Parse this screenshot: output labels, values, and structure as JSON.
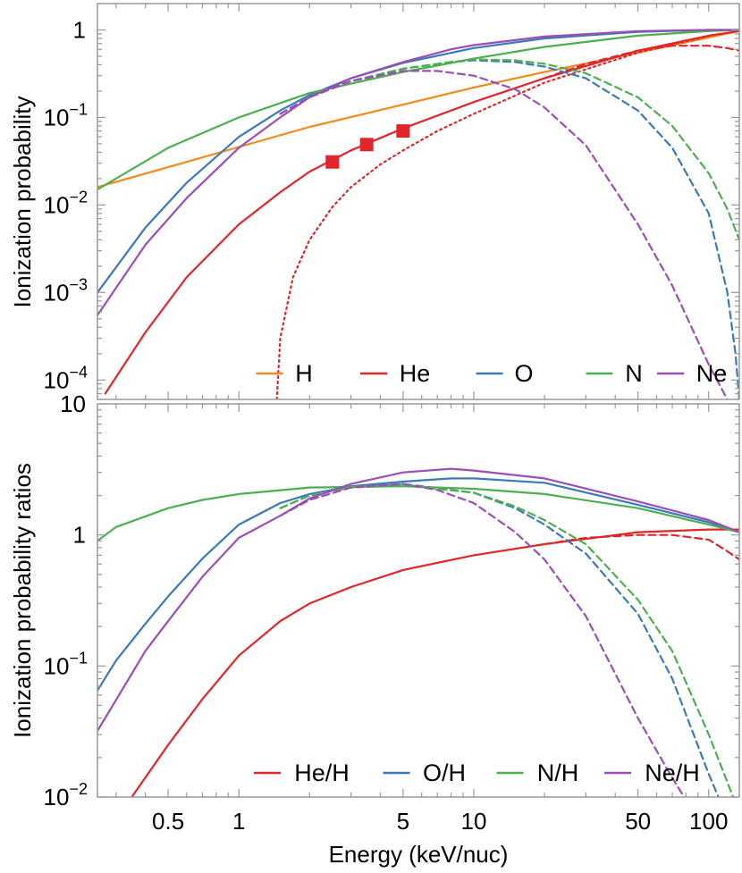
{
  "chart_data": [
    {
      "type": "line",
      "panel": "top",
      "title": "",
      "xlabel": "",
      "ylabel": "Ionization probability",
      "xscale": "log",
      "yscale": "log",
      "xlim": [
        0.25,
        135
      ],
      "ylim": [
        6e-05,
        2
      ],
      "grid": false,
      "legend_placement": "bottom-right, single row",
      "y_tick_labels": [
        {
          "value": 1,
          "label": "1"
        },
        {
          "value": 0.1,
          "label": "10",
          "exp": "−1"
        },
        {
          "value": 0.01,
          "label": "10",
          "exp": "−2"
        },
        {
          "value": 0.001,
          "label": "10",
          "exp": "−3"
        },
        {
          "value": 0.0001,
          "label": "10",
          "exp": "−4"
        }
      ],
      "legend": [
        {
          "label": "H",
          "color": "#f28a1e"
        },
        {
          "label": "He",
          "color": "#e0262b"
        },
        {
          "label": "O",
          "color": "#3a7ab8"
        },
        {
          "label": "N",
          "color": "#4caf50"
        },
        {
          "label": "Ne",
          "color": "#9b4fb5"
        }
      ],
      "series": [
        {
          "name": "H",
          "style": "solid",
          "color": "#f28a1e",
          "x": [
            0.25,
            0.5,
            1,
            2,
            5,
            10,
            20,
            50,
            100,
            135
          ],
          "y": [
            0.016,
            0.027,
            0.046,
            0.078,
            0.14,
            0.22,
            0.33,
            0.55,
            0.82,
            0.97
          ]
        },
        {
          "name": "He",
          "style": "solid",
          "color": "#e0262b",
          "x": [
            0.27,
            0.4,
            0.6,
            1,
            1.5,
            2,
            3,
            5,
            10,
            20,
            50,
            100,
            135
          ],
          "y": [
            7e-05,
            0.00035,
            0.0015,
            0.006,
            0.014,
            0.024,
            0.042,
            0.075,
            0.15,
            0.28,
            0.58,
            0.86,
            0.97
          ]
        },
        {
          "name": "He",
          "style": "dashed",
          "color": "#e0262b",
          "x": [
            20,
            30,
            50,
            70,
            100,
            120,
            135
          ],
          "y": [
            0.28,
            0.41,
            0.58,
            0.66,
            0.66,
            0.62,
            0.58
          ]
        },
        {
          "name": "He",
          "style": "dotted",
          "color": "#e0262b",
          "x": [
            1.45,
            1.5,
            1.7,
            2,
            2.5,
            3,
            4,
            5,
            7,
            10,
            20,
            50,
            100
          ],
          "y": [
            6e-05,
            0.0003,
            0.0015,
            0.004,
            0.0095,
            0.016,
            0.029,
            0.042,
            0.07,
            0.11,
            0.25,
            0.55,
            0.85
          ]
        },
        {
          "name": "He",
          "style": "markers",
          "color": "#e0262b",
          "x": [
            2.5,
            3.5,
            5
          ],
          "y": [
            0.031,
            0.049,
            0.07
          ]
        },
        {
          "name": "O",
          "style": "solid",
          "color": "#3a7ab8",
          "x": [
            0.25,
            0.4,
            0.6,
            1,
            1.5,
            2,
            3,
            5,
            10,
            20,
            50,
            100,
            135
          ],
          "y": [
            0.001,
            0.0055,
            0.018,
            0.06,
            0.12,
            0.18,
            0.28,
            0.42,
            0.62,
            0.8,
            0.95,
            1.0,
            1.0
          ]
        },
        {
          "name": "O",
          "style": "dashed",
          "color": "#3a7ab8",
          "x": [
            1.5,
            2,
            3,
            5,
            8,
            10,
            15,
            20,
            30,
            50,
            70,
            100,
            120,
            130,
            135
          ],
          "y": [
            0.11,
            0.17,
            0.26,
            0.36,
            0.43,
            0.45,
            0.43,
            0.38,
            0.28,
            0.12,
            0.045,
            0.008,
            0.001,
            0.0002,
            6e-05
          ]
        },
        {
          "name": "N",
          "style": "solid",
          "color": "#4caf50",
          "x": [
            0.25,
            0.5,
            1,
            2,
            5,
            10,
            20,
            50,
            100,
            135
          ],
          "y": [
            0.015,
            0.045,
            0.1,
            0.19,
            0.33,
            0.47,
            0.64,
            0.86,
            0.97,
            1.0
          ]
        },
        {
          "name": "N",
          "style": "dashed",
          "color": "#4caf50",
          "x": [
            1.5,
            2,
            3,
            5,
            8,
            10,
            15,
            20,
            30,
            50,
            70,
            100,
            120,
            135
          ],
          "y": [
            0.11,
            0.17,
            0.26,
            0.36,
            0.43,
            0.46,
            0.45,
            0.41,
            0.32,
            0.17,
            0.08,
            0.023,
            0.009,
            0.004
          ]
        },
        {
          "name": "Ne",
          "style": "solid",
          "color": "#9b4fb5",
          "x": [
            0.25,
            0.4,
            0.6,
            1,
            1.5,
            2,
            3,
            5,
            8,
            10,
            20,
            50,
            100,
            135
          ],
          "y": [
            0.00055,
            0.0035,
            0.012,
            0.045,
            0.1,
            0.17,
            0.28,
            0.43,
            0.6,
            0.67,
            0.84,
            0.97,
            1.0,
            1.0
          ]
        },
        {
          "name": "Ne",
          "style": "dashed",
          "color": "#9b4fb5",
          "x": [
            1.5,
            2,
            3,
            5,
            7,
            10,
            15,
            20,
            30,
            50,
            70,
            100,
            120
          ],
          "y": [
            0.11,
            0.17,
            0.26,
            0.34,
            0.34,
            0.3,
            0.21,
            0.13,
            0.048,
            0.006,
            0.0012,
            0.00015,
            6e-05
          ]
        }
      ]
    },
    {
      "type": "line",
      "panel": "bottom",
      "title": "",
      "xlabel": "Energy (keV/nuc)",
      "ylabel": "Ionization probability ratios",
      "xscale": "log",
      "yscale": "log",
      "xlim": [
        0.25,
        135
      ],
      "ylim": [
        0.01,
        10
      ],
      "grid": false,
      "legend_placement": "bottom-right, single row",
      "x_tick_labels": [
        {
          "value": 0.5,
          "label": "0.5"
        },
        {
          "value": 1,
          "label": "1"
        },
        {
          "value": 5,
          "label": "5"
        },
        {
          "value": 10,
          "label": "10"
        },
        {
          "value": 50,
          "label": "50"
        },
        {
          "value": 100,
          "label": "100"
        }
      ],
      "y_tick_labels": [
        {
          "value": 10,
          "label": "10"
        },
        {
          "value": 1,
          "label": "1"
        },
        {
          "value": 0.1,
          "label": "10",
          "exp": "−1"
        },
        {
          "value": 0.01,
          "label": "10",
          "exp": "−2"
        }
      ],
      "legend": [
        {
          "label": "He/H",
          "color": "#e0262b"
        },
        {
          "label": "O/H",
          "color": "#3a7ab8"
        },
        {
          "label": "N/H",
          "color": "#4caf50"
        },
        {
          "label": "Ne/H",
          "color": "#9b4fb5"
        }
      ],
      "series": [
        {
          "name": "He/H",
          "style": "solid",
          "color": "#e0262b",
          "x": [
            0.35,
            0.5,
            0.7,
            1,
            1.5,
            2,
            3,
            5,
            10,
            20,
            50,
            100,
            135
          ],
          "y": [
            0.01,
            0.025,
            0.056,
            0.12,
            0.22,
            0.3,
            0.4,
            0.54,
            0.7,
            0.85,
            1.05,
            1.1,
            1.1
          ]
        },
        {
          "name": "He/H",
          "style": "dashed",
          "color": "#e0262b",
          "x": [
            20,
            30,
            50,
            70,
            100,
            120,
            135
          ],
          "y": [
            0.85,
            0.95,
            1.0,
            1.0,
            0.92,
            0.75,
            0.65
          ]
        },
        {
          "name": "O/H",
          "style": "solid",
          "color": "#3a7ab8",
          "x": [
            0.25,
            0.3,
            0.4,
            0.5,
            0.7,
            1,
            1.5,
            2,
            3,
            5,
            8,
            10,
            20,
            50,
            100,
            135
          ],
          "y": [
            0.065,
            0.11,
            0.21,
            0.34,
            0.66,
            1.2,
            1.75,
            2.05,
            2.35,
            2.55,
            2.7,
            2.7,
            2.5,
            1.7,
            1.25,
            1.05
          ]
        },
        {
          "name": "O/H",
          "style": "dashed",
          "color": "#3a7ab8",
          "x": [
            1.5,
            2,
            3,
            5,
            10,
            15,
            20,
            30,
            50,
            70,
            100,
            110,
            120
          ],
          "y": [
            1.6,
            2.0,
            2.3,
            2.45,
            2.1,
            1.6,
            1.2,
            0.72,
            0.25,
            0.08,
            0.015,
            0.01,
            0.006
          ]
        },
        {
          "name": "N/H",
          "style": "solid",
          "color": "#4caf50",
          "x": [
            0.25,
            0.3,
            0.5,
            0.7,
            1,
            2,
            5,
            10,
            20,
            50,
            100,
            135
          ],
          "y": [
            0.9,
            1.15,
            1.6,
            1.85,
            2.05,
            2.3,
            2.35,
            2.25,
            2.05,
            1.6,
            1.2,
            1.05
          ]
        },
        {
          "name": "N/H",
          "style": "dashed",
          "color": "#4caf50",
          "x": [
            1.5,
            2,
            3,
            5,
            10,
            15,
            20,
            30,
            50,
            70,
            100,
            120,
            130
          ],
          "y": [
            1.6,
            2.0,
            2.3,
            2.4,
            2.1,
            1.65,
            1.3,
            0.85,
            0.32,
            0.13,
            0.03,
            0.013,
            0.009
          ]
        },
        {
          "name": "Ne/H",
          "style": "solid",
          "color": "#9b4fb5",
          "x": [
            0.25,
            0.3,
            0.4,
            0.5,
            0.7,
            1,
            1.5,
            2,
            3,
            5,
            8,
            10,
            20,
            50,
            100,
            135
          ],
          "y": [
            0.032,
            0.055,
            0.13,
            0.22,
            0.48,
            0.95,
            1.4,
            1.9,
            2.45,
            3.0,
            3.2,
            3.1,
            2.7,
            1.8,
            1.3,
            1.05
          ]
        },
        {
          "name": "Ne/H",
          "style": "dashed",
          "color": "#9b4fb5",
          "x": [
            1.5,
            2,
            3,
            5,
            7,
            10,
            15,
            20,
            30,
            50,
            70,
            80
          ],
          "y": [
            1.4,
            1.85,
            2.3,
            2.45,
            2.2,
            1.75,
            1.05,
            0.65,
            0.24,
            0.04,
            0.014,
            0.0095
          ]
        }
      ]
    }
  ]
}
